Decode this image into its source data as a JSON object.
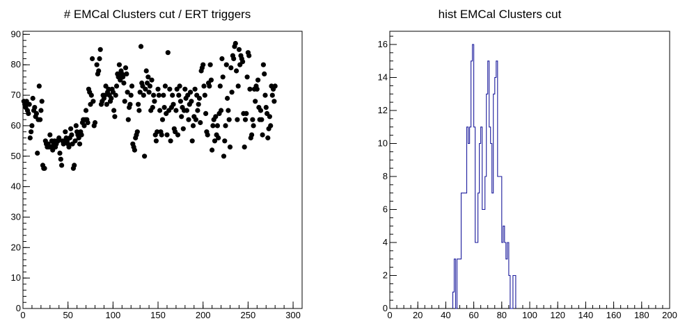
{
  "chart_data": [
    {
      "type": "scatter",
      "title": "# EMCal Clusters cut / ERT triggers",
      "xlabel": "",
      "ylabel": "",
      "xlim": [
        0,
        310
      ],
      "ylim": [
        0,
        91
      ],
      "xticks": [
        0,
        50,
        100,
        150,
        200,
        250,
        300
      ],
      "yticks": [
        0,
        10,
        20,
        30,
        40,
        50,
        60,
        70,
        80,
        90
      ],
      "marker": "filled-circle",
      "color": "#000000",
      "points": [
        [
          1,
          68
        ],
        [
          2,
          67
        ],
        [
          3,
          66
        ],
        [
          4,
          68
        ],
        [
          5,
          65
        ],
        [
          6,
          64
        ],
        [
          7,
          67
        ],
        [
          8,
          56
        ],
        [
          9,
          58
        ],
        [
          10,
          60
        ],
        [
          11,
          69
        ],
        [
          12,
          65
        ],
        [
          13,
          66
        ],
        [
          14,
          63
        ],
        [
          15,
          64
        ],
        [
          16,
          51
        ],
        [
          17,
          62
        ],
        [
          18,
          73
        ],
        [
          19,
          62
        ],
        [
          20,
          65
        ],
        [
          21,
          68
        ],
        [
          22,
          47
        ],
        [
          23,
          46
        ],
        [
          24,
          46
        ],
        [
          25,
          55
        ],
        [
          26,
          54
        ],
        [
          27,
          53
        ],
        [
          28,
          54
        ],
        [
          29,
          53
        ],
        [
          30,
          57
        ],
        [
          31,
          53
        ],
        [
          32,
          55
        ],
        [
          33,
          52
        ],
        [
          34,
          54
        ],
        [
          35,
          55
        ],
        [
          36,
          53
        ],
        [
          37,
          54
        ],
        [
          38,
          55
        ],
        [
          39,
          55
        ],
        [
          40,
          56
        ],
        [
          41,
          51
        ],
        [
          42,
          49
        ],
        [
          43,
          47
        ],
        [
          44,
          55
        ],
        [
          45,
          54
        ],
        [
          46,
          55
        ],
        [
          47,
          58
        ],
        [
          48,
          56
        ],
        [
          49,
          55
        ],
        [
          50,
          54
        ],
        [
          51,
          53
        ],
        [
          52,
          56
        ],
        [
          53,
          59
        ],
        [
          54,
          57
        ],
        [
          55,
          54
        ],
        [
          56,
          46
        ],
        [
          57,
          47
        ],
        [
          58,
          55
        ],
        [
          59,
          60
        ],
        [
          60,
          58
        ],
        [
          61,
          57
        ],
        [
          62,
          56
        ],
        [
          63,
          54
        ],
        [
          64,
          58
        ],
        [
          65,
          57
        ],
        [
          66,
          61
        ],
        [
          67,
          62
        ],
        [
          68,
          60
        ],
        [
          69,
          62
        ],
        [
          70,
          65
        ],
        [
          71,
          62
        ],
        [
          72,
          61
        ],
        [
          73,
          72
        ],
        [
          74,
          71
        ],
        [
          75,
          67
        ],
        [
          76,
          70
        ],
        [
          77,
          82
        ],
        [
          78,
          68
        ],
        [
          79,
          60
        ],
        [
          80,
          61
        ],
        [
          82,
          80
        ],
        [
          83,
          77
        ],
        [
          84,
          78
        ],
        [
          85,
          82
        ],
        [
          86,
          85
        ],
        [
          87,
          67
        ],
        [
          88,
          68
        ],
        [
          89,
          70
        ],
        [
          90,
          69
        ],
        [
          91,
          70
        ],
        [
          92,
          73
        ],
        [
          93,
          67
        ],
        [
          94,
          71
        ],
        [
          95,
          72
        ],
        [
          96,
          70
        ],
        [
          97,
          68
        ],
        [
          98,
          69
        ],
        [
          99,
          72
        ],
        [
          100,
          71
        ],
        [
          101,
          65
        ],
        [
          102,
          63
        ],
        [
          103,
          70
        ],
        [
          104,
          73
        ],
        [
          105,
          77
        ],
        [
          106,
          76
        ],
        [
          107,
          80
        ],
        [
          108,
          75
        ],
        [
          109,
          78
        ],
        [
          110,
          77
        ],
        [
          111,
          76
        ],
        [
          112,
          74
        ],
        [
          113,
          68
        ],
        [
          114,
          79
        ],
        [
          115,
          77
        ],
        [
          116,
          71
        ],
        [
          117,
          62
        ],
        [
          118,
          66
        ],
        [
          119,
          67
        ],
        [
          120,
          70
        ],
        [
          121,
          73
        ],
        [
          122,
          54
        ],
        [
          123,
          53
        ],
        [
          124,
          52
        ],
        [
          125,
          56
        ],
        [
          126,
          57
        ],
        [
          127,
          58
        ],
        [
          128,
          67
        ],
        [
          129,
          65
        ],
        [
          130,
          71
        ],
        [
          131,
          86
        ],
        [
          132,
          74
        ],
        [
          133,
          73
        ],
        [
          134,
          70
        ],
        [
          135,
          50
        ],
        [
          136,
          72
        ],
        [
          137,
          78
        ],
        [
          138,
          74
        ],
        [
          139,
          76
        ],
        [
          140,
          71
        ],
        [
          141,
          73
        ],
        [
          142,
          65
        ],
        [
          143,
          75
        ],
        [
          144,
          66
        ],
        [
          145,
          70
        ],
        [
          146,
          68
        ],
        [
          147,
          57
        ],
        [
          148,
          55
        ],
        [
          149,
          58
        ],
        [
          150,
          72
        ],
        [
          151,
          70
        ],
        [
          152,
          65
        ],
        [
          153,
          58
        ],
        [
          154,
          57
        ],
        [
          155,
          62
        ],
        [
          156,
          70
        ],
        [
          157,
          66
        ],
        [
          158,
          73
        ],
        [
          159,
          64
        ],
        [
          160,
          57
        ],
        [
          161,
          84
        ],
        [
          162,
          65
        ],
        [
          163,
          72
        ],
        [
          164,
          55
        ],
        [
          165,
          66
        ],
        [
          166,
          70
        ],
        [
          167,
          67
        ],
        [
          168,
          59
        ],
        [
          169,
          58
        ],
        [
          170,
          65
        ],
        [
          171,
          72
        ],
        [
          172,
          57
        ],
        [
          173,
          70
        ],
        [
          174,
          73
        ],
        [
          175,
          68
        ],
        [
          176,
          63
        ],
        [
          177,
          66
        ],
        [
          178,
          59
        ],
        [
          179,
          65
        ],
        [
          180,
          72
        ],
        [
          181,
          69
        ],
        [
          182,
          65
        ],
        [
          183,
          70
        ],
        [
          184,
          62
        ],
        [
          185,
          67
        ],
        [
          186,
          71
        ],
        [
          187,
          68
        ],
        [
          188,
          55
        ],
        [
          189,
          60
        ],
        [
          190,
          63
        ],
        [
          191,
          72
        ],
        [
          192,
          62
        ],
        [
          193,
          70
        ],
        [
          194,
          65
        ],
        [
          195,
          67
        ],
        [
          196,
          69
        ],
        [
          197,
          61
        ],
        [
          198,
          78
        ],
        [
          199,
          79
        ],
        [
          200,
          80
        ],
        [
          201,
          73
        ],
        [
          202,
          70
        ],
        [
          203,
          64
        ],
        [
          204,
          58
        ],
        [
          205,
          57
        ],
        [
          206,
          74
        ],
        [
          207,
          73
        ],
        [
          208,
          80
        ],
        [
          209,
          75
        ],
        [
          210,
          52
        ],
        [
          211,
          60
        ],
        [
          212,
          62
        ],
        [
          213,
          55
        ],
        [
          214,
          63
        ],
        [
          215,
          57
        ],
        [
          216,
          60
        ],
        [
          217,
          56
        ],
        [
          218,
          64
        ],
        [
          219,
          73
        ],
        [
          220,
          65
        ],
        [
          221,
          82
        ],
        [
          222,
          76
        ],
        [
          223,
          50
        ],
        [
          224,
          55
        ],
        [
          225,
          60
        ],
        [
          226,
          80
        ],
        [
          227,
          69
        ],
        [
          228,
          65
        ],
        [
          229,
          62
        ],
        [
          230,
          53
        ],
        [
          231,
          79
        ],
        [
          232,
          71
        ],
        [
          233,
          83
        ],
        [
          234,
          82
        ],
        [
          235,
          86
        ],
        [
          236,
          87
        ],
        [
          237,
          78
        ],
        [
          238,
          62
        ],
        [
          239,
          73
        ],
        [
          240,
          85
        ],
        [
          241,
          80
        ],
        [
          242,
          83
        ],
        [
          243,
          82
        ],
        [
          244,
          81
        ],
        [
          245,
          64
        ],
        [
          246,
          53
        ],
        [
          247,
          62
        ],
        [
          248,
          64
        ],
        [
          249,
          76
        ],
        [
          250,
          84
        ],
        [
          251,
          83
        ],
        [
          252,
          72
        ],
        [
          253,
          56
        ],
        [
          254,
          57
        ],
        [
          255,
          62
        ],
        [
          256,
          60
        ],
        [
          257,
          72
        ],
        [
          258,
          68
        ],
        [
          259,
          73
        ],
        [
          260,
          72
        ],
        [
          261,
          75
        ],
        [
          262,
          66
        ],
        [
          263,
          62
        ],
        [
          264,
          65
        ],
        [
          265,
          62
        ],
        [
          266,
          57
        ],
        [
          267,
          80
        ],
        [
          268,
          77
        ],
        [
          269,
          70
        ],
        [
          270,
          66
        ],
        [
          271,
          64
        ],
        [
          272,
          56
        ],
        [
          273,
          59
        ],
        [
          274,
          63
        ],
        [
          275,
          60
        ],
        [
          276,
          73
        ],
        [
          277,
          70
        ],
        [
          278,
          72
        ],
        [
          279,
          68
        ],
        [
          280,
          73
        ]
      ]
    },
    {
      "type": "histogram",
      "title": "hist EMCal Clusters cut",
      "xlabel": "",
      "ylabel": "",
      "xlim": [
        0,
        200
      ],
      "ylim": [
        0,
        16.8
      ],
      "xticks": [
        0,
        20,
        40,
        60,
        80,
        100,
        120,
        140,
        160,
        180,
        200
      ],
      "yticks": [
        0,
        2,
        4,
        6,
        8,
        10,
        12,
        14,
        16
      ],
      "bin_width": 1,
      "bin_start": 45,
      "color": "#1a1a9c",
      "values": [
        1,
        3,
        0,
        3,
        3,
        3,
        7,
        7,
        7,
        7,
        11,
        10,
        11,
        15,
        16,
        11,
        4,
        4,
        7,
        10,
        11,
        6,
        6,
        8,
        13,
        15,
        11,
        10,
        7,
        13,
        14,
        15,
        8,
        8,
        8,
        4,
        5,
        4,
        3,
        4,
        2,
        0,
        0,
        2,
        2
      ]
    }
  ]
}
